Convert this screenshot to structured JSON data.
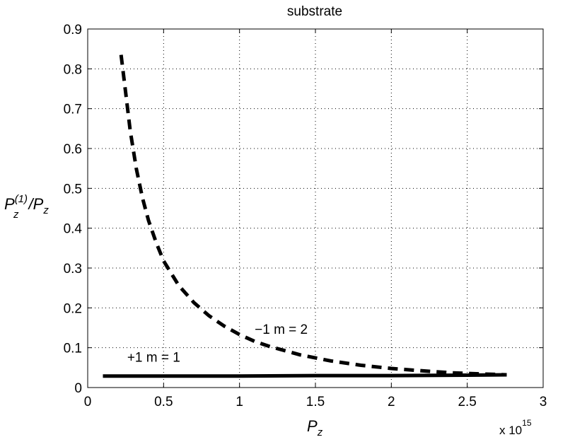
{
  "chart_data": {
    "type": "line",
    "title": "substrate",
    "xlabel": {
      "main": "P",
      "sub": "z"
    },
    "ylabel": {
      "num": "P",
      "num_sub": "z",
      "num_sup": "(1)",
      "sep": "/",
      "den": "P",
      "den_sub": "z"
    },
    "x_multiplier": {
      "base": "x 10",
      "exponent": "15"
    },
    "xlim": [
      0,
      3
    ],
    "ylim": [
      0,
      0.9
    ],
    "x_ticks": [
      0,
      0.5,
      1,
      1.5,
      2,
      2.5,
      3
    ],
    "x_tick_labels": [
      "0",
      "0.5",
      "1",
      "1.5",
      "2",
      "2.5",
      "3"
    ],
    "y_ticks": [
      0,
      0.1,
      0.2,
      0.3,
      0.4,
      0.5,
      0.6,
      0.7,
      0.8,
      0.9
    ],
    "y_tick_labels": [
      "0",
      "0.1",
      "0.2",
      "0.3",
      "0.4",
      "0.5",
      "0.6",
      "0.7",
      "0.8",
      "0.9"
    ],
    "grid": true,
    "series": [
      {
        "style": "dashed",
        "color": "#000000",
        "x": [
          0.22,
          0.25,
          0.28,
          0.32,
          0.36,
          0.4,
          0.45,
          0.5,
          0.6,
          0.7,
          0.8,
          0.9,
          1.0,
          1.1,
          1.2,
          1.4,
          1.6,
          1.8,
          2.0,
          2.2,
          2.4,
          2.6,
          2.76
        ],
        "y": [
          0.835,
          0.74,
          0.645,
          0.55,
          0.477,
          0.42,
          0.365,
          0.318,
          0.256,
          0.213,
          0.18,
          0.154,
          0.133,
          0.116,
          0.103,
          0.082,
          0.067,
          0.056,
          0.048,
          0.042,
          0.037,
          0.034,
          0.032
        ]
      },
      {
        "style": "solid",
        "color": "#000000",
        "x": [
          0.1,
          0.5,
          1.0,
          1.5,
          2.0,
          2.5,
          2.76
        ],
        "y": [
          0.029,
          0.029,
          0.029,
          0.03,
          0.03,
          0.031,
          0.032
        ]
      }
    ],
    "annotations": [
      {
        "text": "−1  m = 2",
        "x": 1.1,
        "y": 0.135
      },
      {
        "text": "+1  m = 1",
        "x": 0.26,
        "y": 0.065
      }
    ]
  }
}
